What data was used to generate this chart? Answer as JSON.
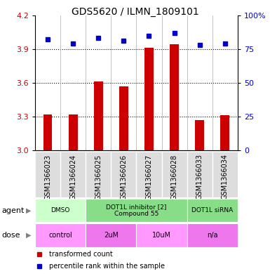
{
  "title": "GDS5620 / ILMN_1809101",
  "samples": [
    "GSM1366023",
    "GSM1366024",
    "GSM1366025",
    "GSM1366026",
    "GSM1366027",
    "GSM1366028",
    "GSM1366033",
    "GSM1366034"
  ],
  "bar_values": [
    3.32,
    3.32,
    3.61,
    3.57,
    3.91,
    3.94,
    3.27,
    3.31
  ],
  "bar_base": 3.0,
  "dot_values_pct": [
    82,
    79,
    83,
    81,
    85,
    87,
    78,
    79
  ],
  "ylim_left": [
    3.0,
    4.2
  ],
  "ylim_right": [
    0,
    100
  ],
  "yticks_left": [
    3.0,
    3.3,
    3.6,
    3.9,
    4.2
  ],
  "yticks_right": [
    0,
    25,
    50,
    75,
    100
  ],
  "bar_color": "#cc0000",
  "dot_color": "#0000cc",
  "agent_groups": [
    {
      "label": "DMSO",
      "start": 0,
      "end": 2,
      "color": "#ccffcc"
    },
    {
      "label": "DOT1L inhibitor [2]\nCompound 55",
      "start": 2,
      "end": 6,
      "color": "#88dd88"
    },
    {
      "label": "DOT1L siRNA",
      "start": 6,
      "end": 8,
      "color": "#88dd88"
    }
  ],
  "dose_groups": [
    {
      "label": "control",
      "start": 0,
      "end": 2,
      "color": "#ff99ff"
    },
    {
      "label": "2uM",
      "start": 2,
      "end": 4,
      "color": "#ee77ee"
    },
    {
      "label": "10uM",
      "start": 4,
      "end": 6,
      "color": "#ff99ff"
    },
    {
      "label": "n/a",
      "start": 6,
      "end": 8,
      "color": "#ee77ee"
    }
  ],
  "legend_items": [
    {
      "label": "transformed count",
      "color": "#cc0000"
    },
    {
      "label": "percentile rank within the sample",
      "color": "#0000cc"
    }
  ],
  "sample_bg_color": "#dddddd",
  "grid_color": "black",
  "background_color": "white",
  "title_fontsize": 10,
  "tick_fontsize": 8,
  "label_fontsize": 8,
  "sample_fontsize": 7,
  "row_label_fontsize": 8
}
